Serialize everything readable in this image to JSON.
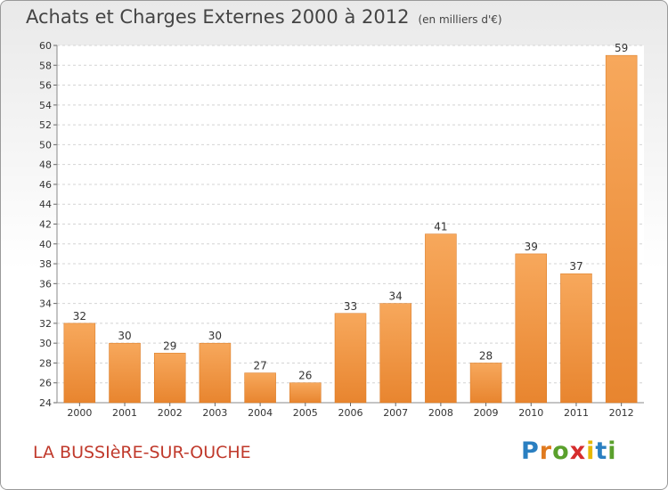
{
  "title": "Achats et Charges Externes 2000 à 2012",
  "subtitle": "(en milliers d'€)",
  "place": "LA BUSSIèRE-SUR-OUCHE",
  "logo": {
    "letters": [
      "P",
      "r",
      "o",
      "x",
      "i",
      "t",
      "i"
    ],
    "colors": [
      "#2a7fc1",
      "#e07a1f",
      "#5aa02c",
      "#d62d2d",
      "#e6b800",
      "#2a7fc1",
      "#5aa02c"
    ]
  },
  "chart_data": {
    "type": "bar",
    "categories": [
      "2000",
      "2001",
      "2002",
      "2003",
      "2004",
      "2005",
      "2006",
      "2007",
      "2008",
      "2009",
      "2010",
      "2011",
      "2012"
    ],
    "values": [
      32,
      30,
      29,
      30,
      27,
      26,
      33,
      34,
      41,
      28,
      39,
      37,
      59
    ],
    "ylim": [
      24,
      60
    ],
    "yticks": [
      24,
      26,
      28,
      30,
      32,
      34,
      36,
      38,
      40,
      42,
      44,
      46,
      48,
      50,
      52,
      54,
      56,
      58,
      60
    ],
    "grid": true,
    "bar_color": "#e8852f",
    "bar_color_light": "#f7a85c"
  }
}
